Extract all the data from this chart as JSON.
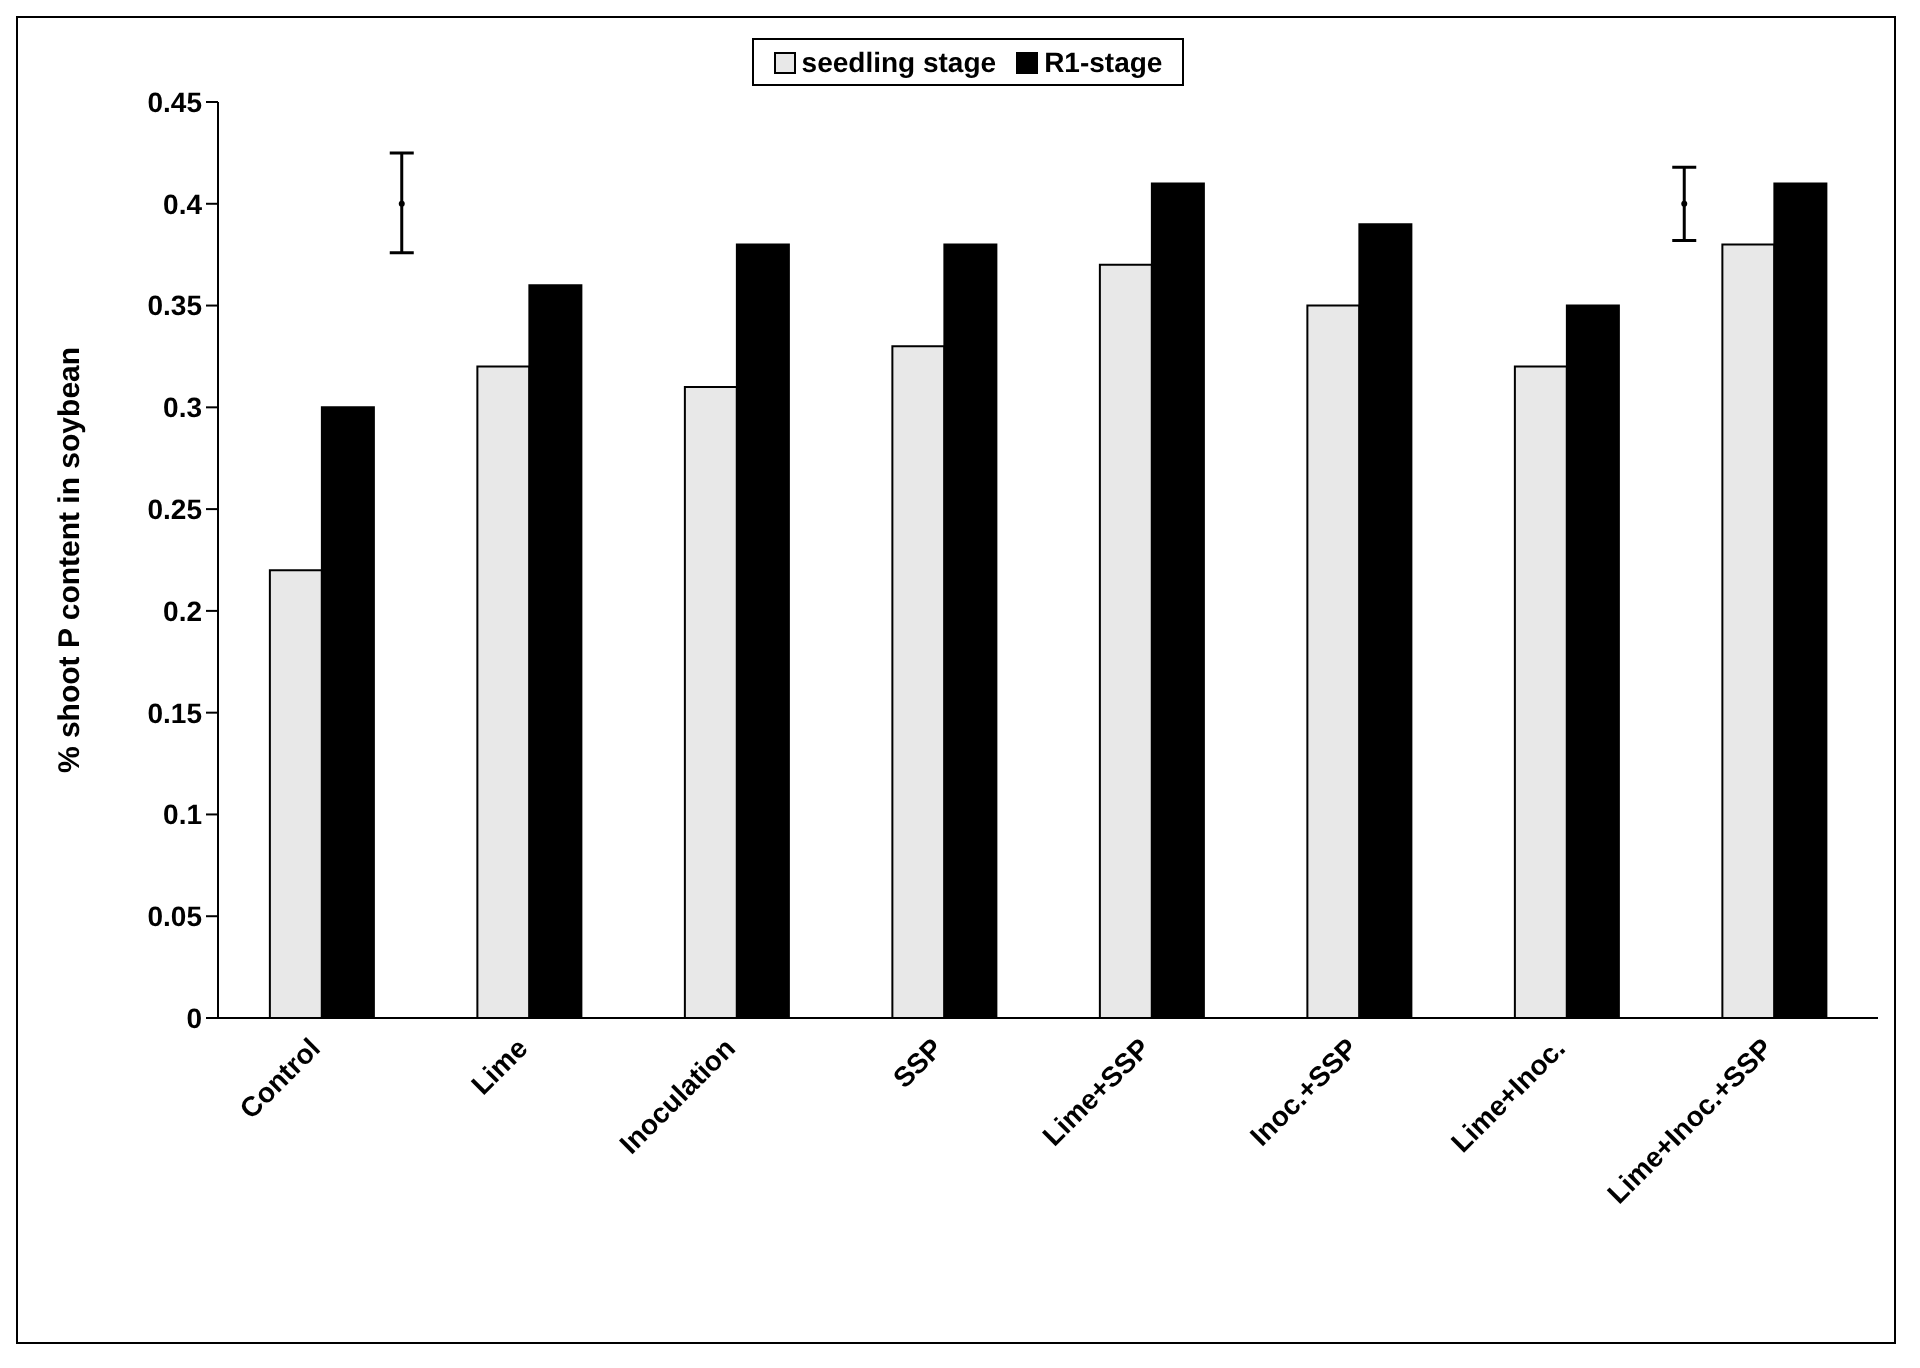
{
  "chart_data": {
    "type": "bar",
    "ylabel": "% shoot P content in soybean",
    "categories": [
      "Control",
      "Lime",
      "Inoculation",
      "SSP",
      "Lime+SSP",
      "Inoc.+SSP",
      "Lime+Inoc.",
      "Lime+Inoc.+SSP"
    ],
    "series": [
      {
        "name": "seedling stage",
        "color": "#e8e8e8",
        "values": [
          0.22,
          0.32,
          0.31,
          0.33,
          0.37,
          0.35,
          0.32,
          0.38
        ]
      },
      {
        "name": "R1-stage",
        "color": "#000000",
        "values": [
          0.3,
          0.36,
          0.38,
          0.38,
          0.41,
          0.39,
          0.35,
          0.41
        ]
      },
      {
        "type": "scatter",
        "color": "#000000",
        "marker": "circle",
        "x": [
          "Control",
          "Lime+Inoc.+SSP"
        ],
        "values": [
          0.4,
          0.4
        ],
        "errors": [
          [
            0.376,
            0.425
          ],
          [
            0.382,
            0.418
          ]
        ]
      }
    ],
    "ylim": [
      0,
      0.45
    ],
    "yticks": [
      0,
      0.05,
      0.1,
      0.15,
      0.2,
      0.25,
      0.3,
      0.35,
      0.4,
      0.45
    ],
    "grid": false,
    "legend": "top"
  }
}
